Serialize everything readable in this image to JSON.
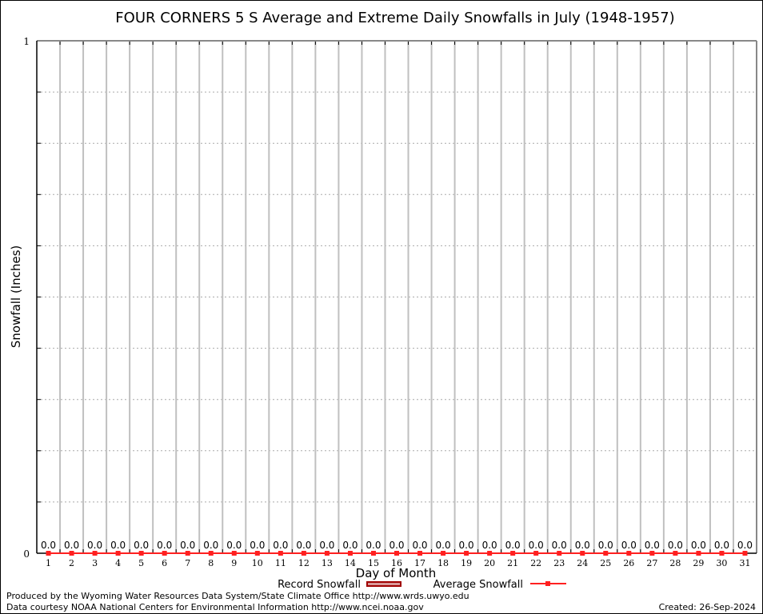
{
  "chart_data": {
    "type": "bar",
    "title": "FOUR CORNERS 5 S Average and Extreme Daily Snowfalls in July (1948-1957)",
    "xlabel": "Day of Month",
    "ylabel": "Snowfall (Inches)",
    "ylim": [
      0,
      1
    ],
    "y_tick_labels": [
      "0",
      "1"
    ],
    "grid": "horizontal dotted at 0.1 intervals",
    "categories": [
      "1",
      "2",
      "3",
      "4",
      "5",
      "6",
      "7",
      "8",
      "9",
      "10",
      "11",
      "12",
      "13",
      "14",
      "15",
      "16",
      "17",
      "18",
      "19",
      "20",
      "21",
      "22",
      "23",
      "24",
      "25",
      "26",
      "27",
      "28",
      "29",
      "30",
      "31"
    ],
    "series": [
      {
        "name": "Record Snowfall",
        "type": "bar",
        "color": "#a00000",
        "values": [
          0,
          0,
          0,
          0,
          0,
          0,
          0,
          0,
          0,
          0,
          0,
          0,
          0,
          0,
          0,
          0,
          0,
          0,
          0,
          0,
          0,
          0,
          0,
          0,
          0,
          0,
          0,
          0,
          0,
          0,
          0
        ]
      },
      {
        "name": "Average Snowfall",
        "type": "line",
        "color": "#ff2020",
        "values": [
          0,
          0,
          0,
          0,
          0,
          0,
          0,
          0,
          0,
          0,
          0,
          0,
          0,
          0,
          0,
          0,
          0,
          0,
          0,
          0,
          0,
          0,
          0,
          0,
          0,
          0,
          0,
          0,
          0,
          0,
          0
        ]
      }
    ],
    "data_labels": [
      "0.0",
      "0.0",
      "0.0",
      "0.0",
      "0.0",
      "0.0",
      "0.0",
      "0.0",
      "0.0",
      "0.0",
      "0.0",
      "0.0",
      "0.0",
      "0.0",
      "0.0",
      "0.0",
      "0.0",
      "0.0",
      "0.0",
      "0.0",
      "0.0",
      "0.0",
      "0.0",
      "0.0",
      "0.0",
      "0.0",
      "0.0",
      "0.0",
      "0.0",
      "0.0",
      "0.0"
    ],
    "legend": "bottom-center"
  },
  "footer": {
    "produced_by": "Produced by the Wyoming Water Resources Data System/State Climate Office http://www.wrds.uwyo.edu",
    "data_courtesy": "Data courtesy NOAA National Centers for Environmental Information http://www.ncei.noaa.gov",
    "created": "Created: 26-Sep-2024"
  }
}
